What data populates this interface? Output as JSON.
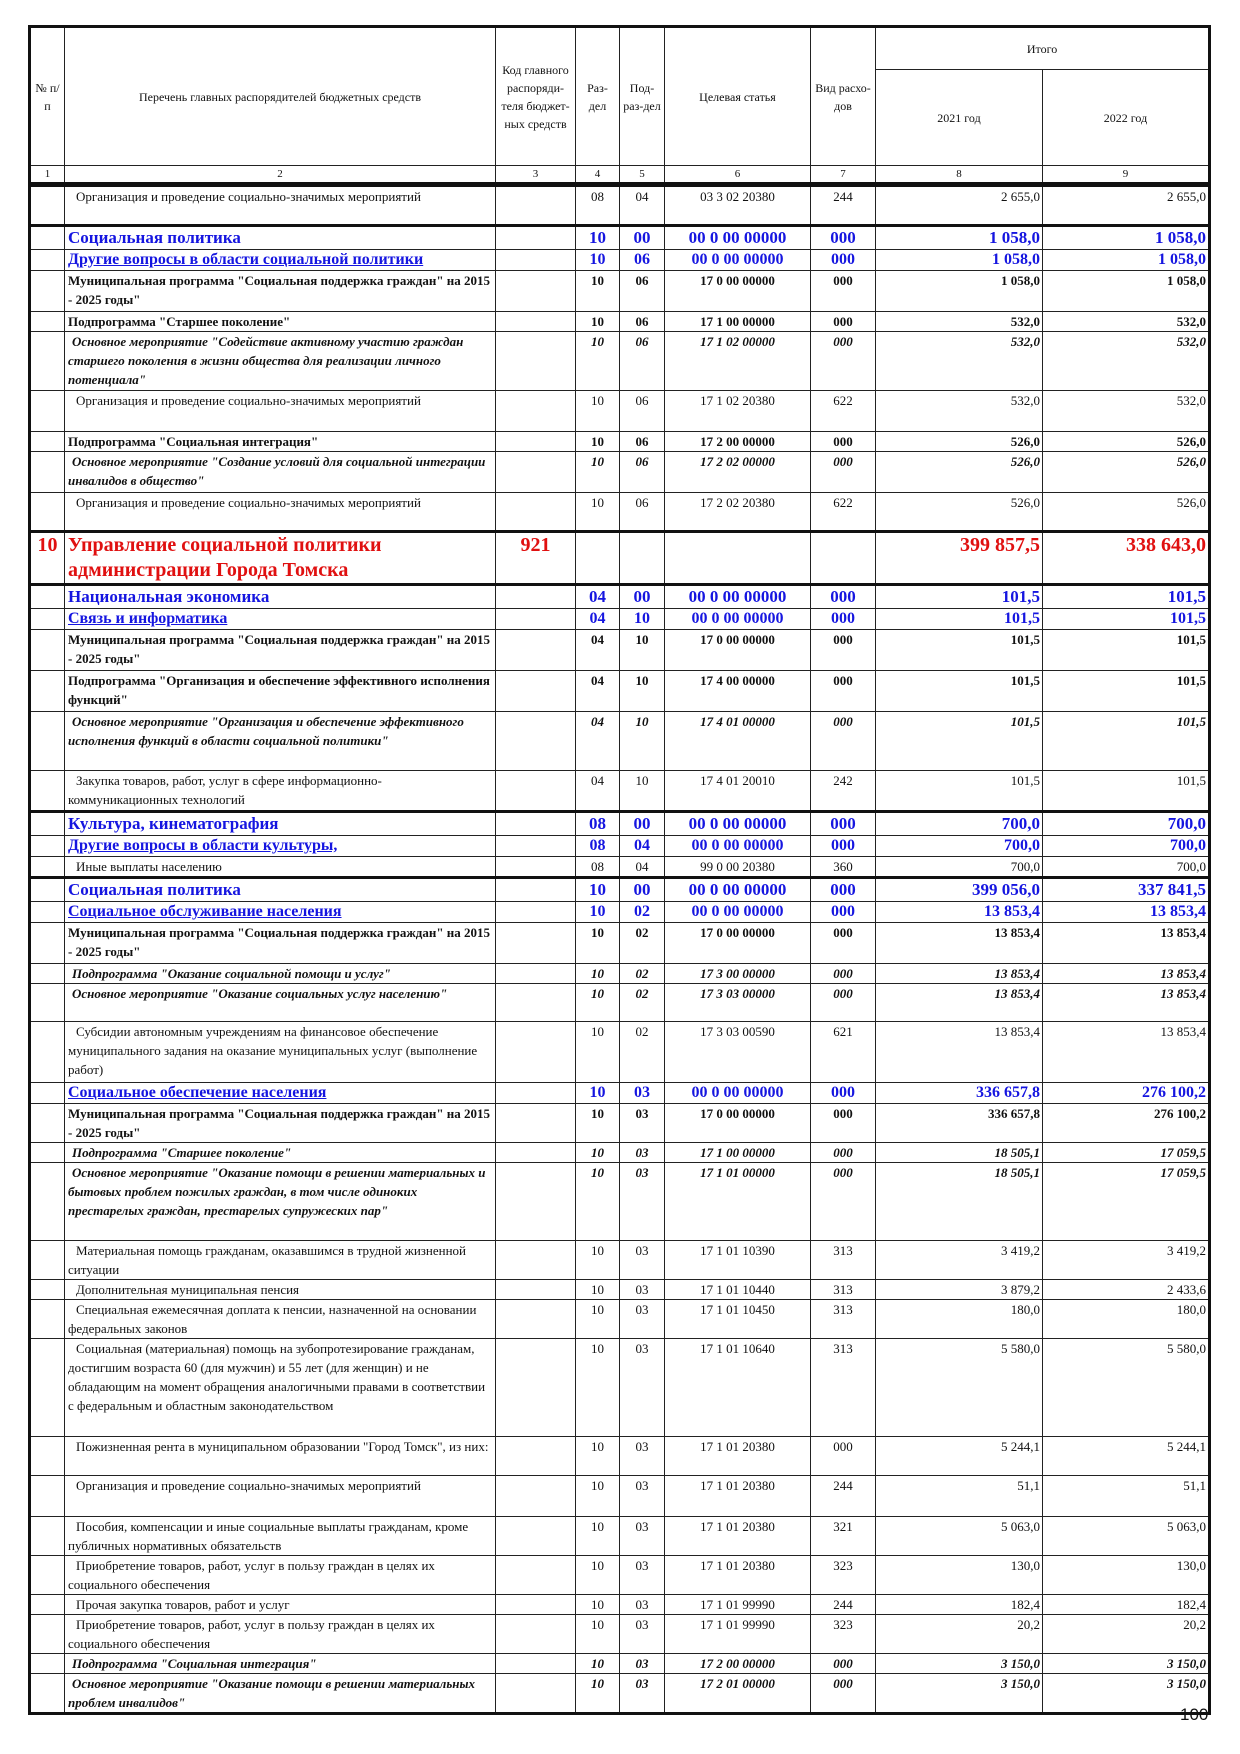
{
  "header": {
    "col1": "№ п/п",
    "col2": "Перечень главных распорядителей бюджетных средств",
    "col3": "Код главного распоряди-теля бюджет-ных средств",
    "col4": "Раз-дел",
    "col5": "Под-раз-дел",
    "col6": "Целевая статья",
    "col7": "Вид расхо-дов",
    "total": "Итого",
    "col8": "2021 год",
    "col9": "2022 год",
    "numbers": [
      "1",
      "2",
      "3",
      "4",
      "5",
      "6",
      "7",
      "8",
      "9"
    ]
  },
  "rows": [
    {
      "style": "plain",
      "cells": [
        "",
        "Организация и проведение социально-значимых мероприятий",
        "",
        "08",
        "04",
        "03 3 02 20380",
        "244",
        "2 655,0",
        "2 655,0"
      ]
    },
    {
      "style": "bluelg",
      "cells": [
        "",
        "Социальная политика",
        "",
        "10",
        "00",
        "00 0 00 00000",
        "000",
        "1 058,0",
        "1 058,0"
      ]
    },
    {
      "style": "blue",
      "cells": [
        "",
        "Другие вопросы в области социальной политики",
        "",
        "10",
        "06",
        "00 0 00 00000",
        "000",
        "1 058,0",
        "1 058,0"
      ]
    },
    {
      "style": "bold",
      "cells": [
        "",
        "Муниципальная программа \"Социальная поддержка граждан\" на 2015 - 2025 годы\"",
        "",
        "10",
        "06",
        "17 0 00 00000",
        "000",
        "1 058,0",
        "1 058,0"
      ]
    },
    {
      "style": "bold",
      "cells": [
        "",
        "Подпрограмма \"Старшее поколение\"",
        "",
        "10",
        "06",
        "17 1 00 00000",
        "000",
        "532,0",
        "532,0"
      ]
    },
    {
      "style": "bolditalic",
      "cells": [
        "",
        "Основное мероприятие \"Содействие активному участию граждан старшего поколения в жизни общества для реализации личного потенциала\"",
        "",
        "10",
        "06",
        "17 1 02 00000",
        "000",
        "532,0",
        "532,0"
      ]
    },
    {
      "style": "plain",
      "cells": [
        "",
        "Организация и проведение социально-значимых мероприятий",
        "",
        "10",
        "06",
        "17 1 02 20380",
        "622",
        "532,0",
        "532,0"
      ]
    },
    {
      "style": "bold",
      "cells": [
        "",
        "Подпрограмма \"Социальная интеграция\"",
        "",
        "10",
        "06",
        "17 2 00 00000",
        "000",
        "526,0",
        "526,0"
      ]
    },
    {
      "style": "bolditalic",
      "cells": [
        "",
        "Основное мероприятие \"Создание условий для социальной интеграции инвалидов в общество\"",
        "",
        "10",
        "06",
        "17 2 02 00000",
        "000",
        "526,0",
        "526,0"
      ]
    },
    {
      "style": "plain",
      "cells": [
        "",
        "Организация и проведение социально-значимых мероприятий",
        "",
        "10",
        "06",
        "17 2 02 20380",
        "622",
        "526,0",
        "526,0"
      ]
    },
    {
      "style": "red",
      "cells": [
        "10",
        "Управление социальной политики администрации Города Томска",
        "921",
        "",
        "",
        "",
        "",
        "399 857,5",
        "338 643,0"
      ]
    },
    {
      "style": "bluelg",
      "cells": [
        "",
        "Национальная экономика",
        "",
        "04",
        "00",
        "00 0 00 00000",
        "000",
        "101,5",
        "101,5"
      ]
    },
    {
      "style": "blue",
      "cells": [
        "",
        "Связь и информатика",
        "",
        "04",
        "10",
        "00 0 00 00000",
        "000",
        "101,5",
        "101,5"
      ]
    },
    {
      "style": "bold",
      "cells": [
        "",
        "Муниципальная программа \"Социальная поддержка граждан\" на 2015 - 2025 годы\"",
        "",
        "04",
        "10",
        "17 0 00 00000",
        "000",
        "101,5",
        "101,5"
      ]
    },
    {
      "style": "bold",
      "cells": [
        "",
        "Подпрограмма \"Организация и обеспечение эффективного исполнения функций\"",
        "",
        "04",
        "10",
        "17 4 00 00000",
        "000",
        "101,5",
        "101,5"
      ]
    },
    {
      "style": "bolditalic",
      "cells": [
        "",
        "Основное мероприятие \"Организация и обеспечение эффективного исполнения функций в области социальной политики\"",
        "",
        "04",
        "10",
        "17 4 01 00000",
        "000",
        "101,5",
        "101,5"
      ]
    },
    {
      "style": "plain",
      "cells": [
        "",
        "Закупка товаров, работ, услуг в сфере информационно-коммуникационных технологий",
        "",
        "04",
        "10",
        "17 4 01 20010",
        "242",
        "101,5",
        "101,5"
      ]
    },
    {
      "style": "bluelg",
      "cells": [
        "",
        "Культура, кинематография",
        "",
        "08",
        "00",
        "00 0 00 00000",
        "000",
        "700,0",
        "700,0"
      ]
    },
    {
      "style": "blue",
      "cells": [
        "",
        "Другие вопросы в области культуры,",
        "",
        "08",
        "04",
        "00 0 00 00000",
        "000",
        "700,0",
        "700,0"
      ]
    },
    {
      "style": "plain",
      "cells": [
        "",
        "Иные выплаты населению",
        "",
        "08",
        "04",
        "99 0 00 20380",
        "360",
        "700,0",
        "700,0"
      ]
    },
    {
      "style": "bluelg",
      "cells": [
        "",
        "Социальная политика",
        "",
        "10",
        "00",
        "00 0 00 00000",
        "000",
        "399 056,0",
        "337 841,5"
      ]
    },
    {
      "style": "blue",
      "cells": [
        "",
        "Социальное обслуживание населения",
        "",
        "10",
        "02",
        "00 0 00 00000",
        "000",
        "13 853,4",
        "13 853,4"
      ]
    },
    {
      "style": "bold",
      "cells": [
        "",
        "Муниципальная программа \"Социальная поддержка граждан\" на 2015 - 2025 годы\"",
        "",
        "10",
        "02",
        "17 0 00 00000",
        "000",
        "13 853,4",
        "13 853,4"
      ]
    },
    {
      "style": "bolditalic",
      "cells": [
        "",
        "Подпрограмма \"Оказание социальной помощи и услуг\"",
        "",
        "10",
        "02",
        "17 3 00 00000",
        "000",
        "13 853,4",
        "13 853,4"
      ]
    },
    {
      "style": "bolditalic",
      "cells": [
        "",
        "Основное мероприятие \"Оказание социальных услуг населению\"",
        "",
        "10",
        "02",
        "17 3 03 00000",
        "000",
        "13 853,4",
        "13 853,4"
      ]
    },
    {
      "style": "plain",
      "cells": [
        "",
        "Субсидии автономным учреждениям на финансовое обеспечение муниципального задания на оказание муниципальных услуг (выполнение работ)",
        "",
        "10",
        "02",
        "17 3 03 00590",
        "621",
        "13 853,4",
        "13 853,4"
      ]
    },
    {
      "style": "blue",
      "cells": [
        "",
        "Социальное обеспечение населения",
        "",
        "10",
        "03",
        "00 0 00 00000",
        "000",
        "336 657,8",
        "276 100,2"
      ]
    },
    {
      "style": "bold",
      "cells": [
        "",
        "Муниципальная программа \"Социальная поддержка граждан\" на 2015 - 2025 годы\"",
        "",
        "10",
        "03",
        "17 0 00 00000",
        "000",
        "336 657,8",
        "276 100,2"
      ]
    },
    {
      "style": "bolditalic",
      "cells": [
        "",
        "Подпрограмма \"Старшее поколение\"",
        "",
        "10",
        "03",
        "17 1 00 00000",
        "000",
        "18 505,1",
        "17 059,5"
      ]
    },
    {
      "style": "bolditalic",
      "cells": [
        "",
        "Основное мероприятие \"Оказание помощи в решении материальных и бытовых проблем пожилых граждан, в том числе одиноких престарелых граждан, престарелых супружеских пар\"",
        "",
        "10",
        "03",
        "17 1 01 00000",
        "000",
        "18 505,1",
        "17 059,5"
      ]
    },
    {
      "style": "plain",
      "cells": [
        "",
        "Материальная помощь гражданам, оказавшимся в трудной жизненной ситуации",
        "",
        "10",
        "03",
        "17 1 01 10390",
        "313",
        "3 419,2",
        "3 419,2"
      ]
    },
    {
      "style": "plain",
      "cells": [
        "",
        "Дополнительная муниципальная пенсия",
        "",
        "10",
        "03",
        "17 1 01 10440",
        "313",
        "3 879,2",
        "2 433,6"
      ]
    },
    {
      "style": "plain",
      "cells": [
        "",
        "Специальная ежемесячная доплата к пенсии, назначенной на основании федеральных законов",
        "",
        "10",
        "03",
        "17 1 01 10450",
        "313",
        "180,0",
        "180,0"
      ]
    },
    {
      "style": "plain",
      "cells": [
        "",
        "Социальная (материальная) помощь на зубопротезирование гражданам, достигшим возраста 60 (для мужчин) и 55 лет (для женщин) и не обладающим на момент обращения аналогичными правами в соответствии с федеральным и областным законодательством",
        "",
        "10",
        "03",
        "17 1 01 10640",
        "313",
        "5 580,0",
        "5 580,0"
      ]
    },
    {
      "style": "plain",
      "cells": [
        "",
        "Пожизненная рента в муниципальном образовании \"Город Томск\", из них:",
        "",
        "10",
        "03",
        "17 1 01 20380",
        "000",
        "5 244,1",
        "5 244,1"
      ]
    },
    {
      "style": "plain",
      "cells": [
        "",
        "Организация и проведение социально-значимых мероприятий",
        "",
        "10",
        "03",
        "17 1 01 20380",
        "244",
        "51,1",
        "51,1"
      ]
    },
    {
      "style": "plain",
      "cells": [
        "",
        "Пособия, компенсации и иные социальные выплаты гражданам, кроме публичных нормативных обязательств",
        "",
        "10",
        "03",
        "17 1 01 20380",
        "321",
        "5 063,0",
        "5 063,0"
      ]
    },
    {
      "style": "plain",
      "cells": [
        "",
        "Приобретение товаров, работ, услуг в пользу граждан в целях их социального обеспечения",
        "",
        "10",
        "03",
        "17 1 01 20380",
        "323",
        "130,0",
        "130,0"
      ]
    },
    {
      "style": "plain",
      "cells": [
        "",
        "Прочая закупка товаров, работ и услуг",
        "",
        "10",
        "03",
        "17 1 01 99990",
        "244",
        "182,4",
        "182,4"
      ]
    },
    {
      "style": "plain",
      "cells": [
        "",
        "Приобретение товаров, работ, услуг в пользу граждан в целях их социального обеспечения",
        "",
        "10",
        "03",
        "17 1 01 99990",
        "323",
        "20,2",
        "20,2"
      ]
    },
    {
      "style": "bolditalic",
      "cells": [
        "",
        "Подпрограмма \"Социальная интеграция\"",
        "",
        "10",
        "03",
        "17 2 00 00000",
        "000",
        "3 150,0",
        "3 150,0"
      ]
    },
    {
      "style": "bolditalic",
      "cells": [
        "",
        "Основное мероприятие \"Оказание помощи в решении материальных проблем инвалидов\"",
        "",
        "10",
        "03",
        "17 2 01 00000",
        "000",
        "3 150,0",
        "3 150,0"
      ]
    }
  ],
  "page_number": "100"
}
